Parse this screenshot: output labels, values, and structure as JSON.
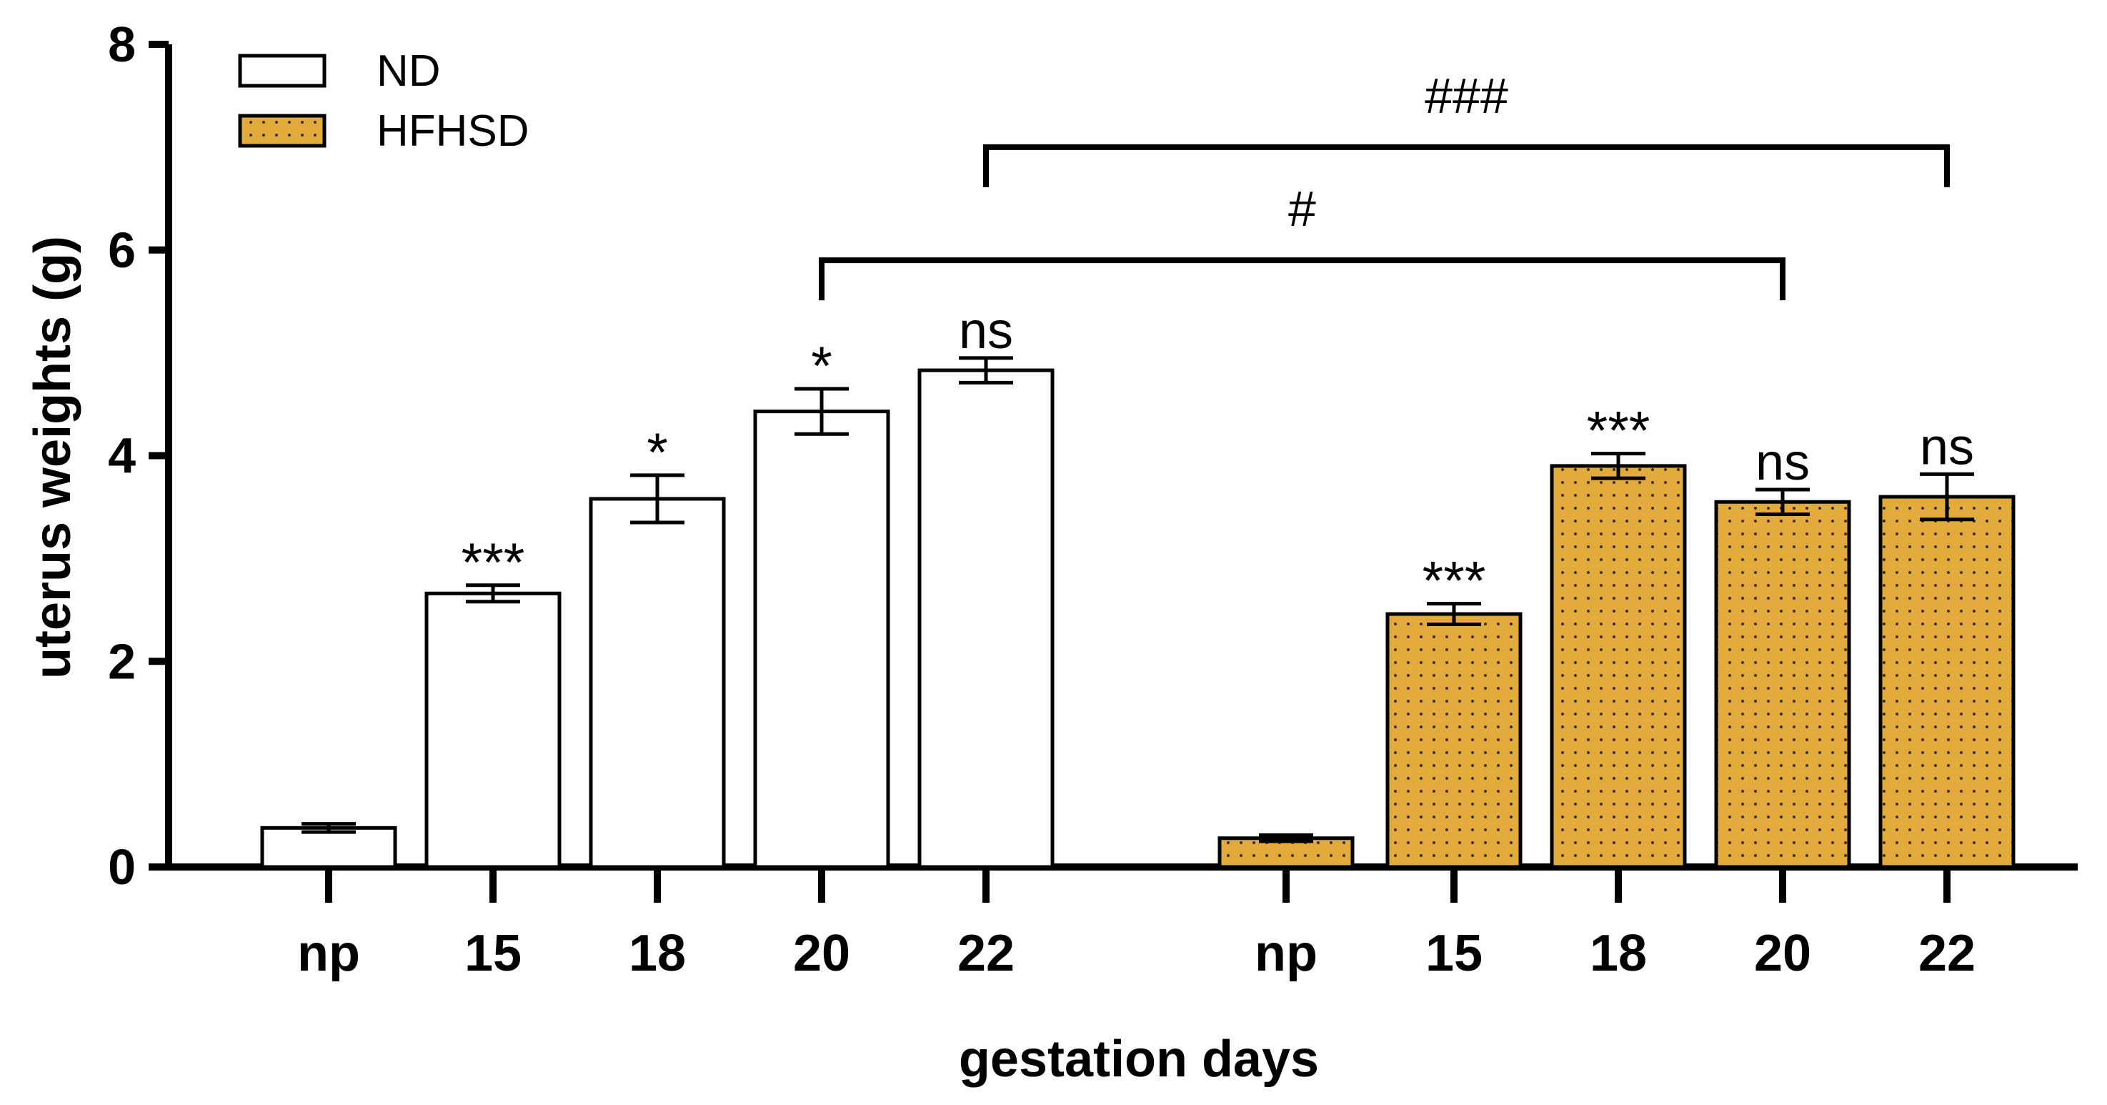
{
  "chart_data": {
    "type": "bar",
    "title": "",
    "xlabel": "gestation days",
    "ylabel": "uterus weights (g)",
    "ylim": [
      0,
      8
    ],
    "yticks": [
      "0",
      "2",
      "4",
      "6",
      "8"
    ],
    "categories": [
      "np",
      "15",
      "18",
      "20",
      "22"
    ],
    "legend_position": "top-left",
    "series": [
      {
        "name": "ND",
        "fill": "#ffffff",
        "pattern": "none",
        "values": [
          0.38,
          2.66,
          3.58,
          4.43,
          4.83
        ],
        "errors": [
          0.04,
          0.08,
          0.23,
          0.22,
          0.12
        ],
        "significance": [
          "",
          "***",
          "*",
          "*",
          "ns"
        ]
      },
      {
        "name": "HFHSD",
        "fill": "#E2AB3C",
        "pattern": "dots",
        "values": [
          0.28,
          2.46,
          3.9,
          3.55,
          3.6
        ],
        "errors": [
          0.03,
          0.1,
          0.12,
          0.12,
          0.22
        ],
        "significance": [
          "",
          "***",
          "***",
          "ns",
          "ns"
        ]
      }
    ],
    "comparisons": [
      {
        "label": "#",
        "from": "ND 20",
        "to": "HFHSD 20",
        "level": 5.9
      },
      {
        "label": "###",
        "from": "ND 22",
        "to": "HFHSD 22",
        "level": 7.0
      }
    ]
  }
}
